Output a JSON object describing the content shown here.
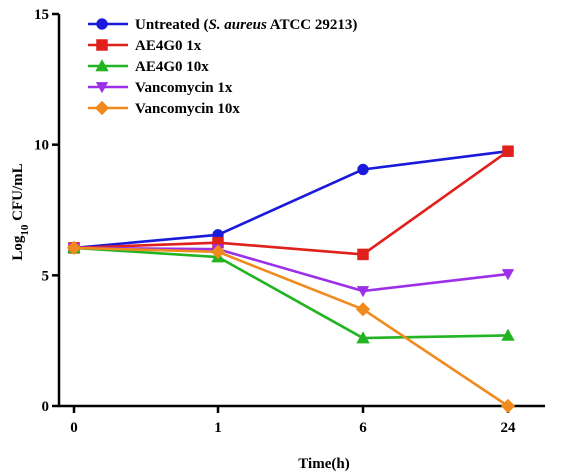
{
  "chart_data": {
    "type": "line",
    "title": "",
    "xlabel": "Time(h)",
    "ylabel": {
      "base": "Log",
      "subscript": "10",
      "rest": " CFU/mL"
    },
    "categories": [
      "0",
      "1",
      "6",
      "24"
    ],
    "ylim": [
      0,
      15
    ],
    "yticks": [
      0,
      5,
      10,
      15
    ],
    "grid": false,
    "legend_position": "top-left",
    "series": [
      {
        "name": "Untreated (S. aureus ATCC 29213)",
        "name_parts": [
          "Untreated (",
          "S. aureus",
          " ATCC 29213)"
        ],
        "color": "#1a1adb",
        "marker": "circle",
        "values": [
          6.05,
          6.55,
          9.05,
          9.75
        ]
      },
      {
        "name": "AE4G0 1x",
        "name_parts": [
          "AE4G0 1x"
        ],
        "color": "#e0201b",
        "marker": "square",
        "values": [
          6.05,
          6.25,
          5.8,
          9.75
        ]
      },
      {
        "name": "AE4G0 10x",
        "name_parts": [
          "AE4G0 10x"
        ],
        "color": "#22b422",
        "marker": "triangle-up",
        "values": [
          6.05,
          5.7,
          2.6,
          2.7
        ]
      },
      {
        "name": "Vancomycin 1x",
        "name_parts": [
          "Vancomycin 1x"
        ],
        "color": "#9b30e8",
        "marker": "triangle-down",
        "values": [
          6.05,
          6.0,
          4.4,
          5.05
        ]
      },
      {
        "name": "Vancomycin 10x",
        "name_parts": [
          "Vancomycin 10x"
        ],
        "color": "#f08a1c",
        "marker": "diamond",
        "values": [
          6.05,
          5.9,
          3.7,
          0.0
        ]
      }
    ]
  }
}
